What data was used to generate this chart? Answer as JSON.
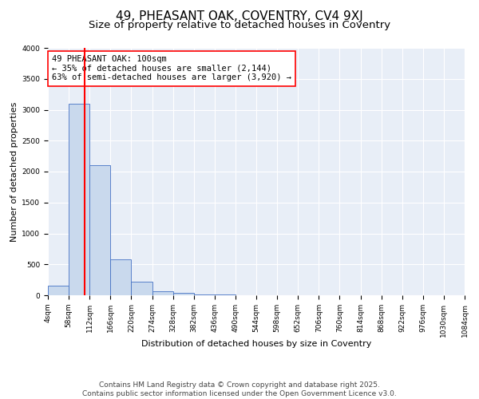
{
  "title": "49, PHEASANT OAK, COVENTRY, CV4 9XJ",
  "subtitle": "Size of property relative to detached houses in Coventry",
  "xlabel": "Distribution of detached houses by size in Coventry",
  "ylabel": "Number of detached properties",
  "bin_edges": [
    4,
    58,
    112,
    166,
    220,
    274,
    328,
    382,
    436,
    490,
    544,
    598,
    652,
    706,
    760,
    814,
    868,
    922,
    976,
    1030,
    1084
  ],
  "bar_heights": [
    150,
    3100,
    2100,
    580,
    220,
    70,
    45,
    15,
    8,
    5,
    4,
    3,
    2,
    2,
    2,
    2,
    2,
    1,
    1,
    2
  ],
  "bar_color": "#c9d9ed",
  "bar_edge_color": "#4472c4",
  "red_line_x": 100,
  "annotation_line1": "49 PHEASANT OAK: 100sqm",
  "annotation_line2": "← 35% of detached houses are smaller (2,144)",
  "annotation_line3": "63% of semi-detached houses are larger (3,920) →",
  "annotation_box_color": "white",
  "annotation_box_edge_color": "red",
  "red_line_color": "red",
  "ylim": [
    0,
    4000
  ],
  "yticks": [
    0,
    500,
    1000,
    1500,
    2000,
    2500,
    3000,
    3500,
    4000
  ],
  "background_color": "#e8eef7",
  "grid_color": "white",
  "footer_line1": "Contains HM Land Registry data © Crown copyright and database right 2025.",
  "footer_line2": "Contains public sector information licensed under the Open Government Licence v3.0.",
  "title_fontsize": 11,
  "subtitle_fontsize": 9.5,
  "xlabel_fontsize": 8,
  "ylabel_fontsize": 8,
  "tick_fontsize": 6.5,
  "annotation_fontsize": 7.5,
  "footer_fontsize": 6.5
}
